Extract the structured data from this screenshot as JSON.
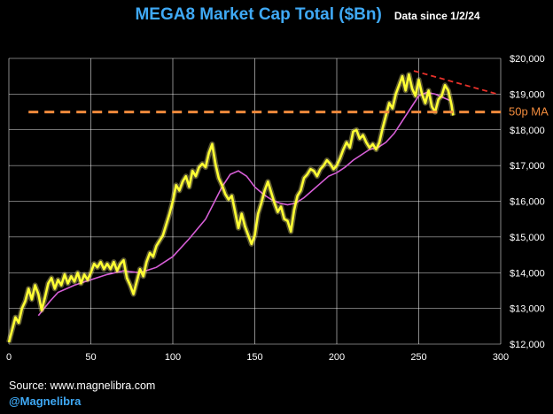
{
  "header": {
    "title": "MEGA8 Market Cap Total ($Bn)",
    "subtitle": "Data since 1/2/24"
  },
  "footer": {
    "source": "Source: www.magnelibra.com",
    "handle": "@Magnelibra"
  },
  "colors": {
    "background": "#000000",
    "title": "#3fa9f5",
    "price_line": "#ffff33",
    "price_glow": "#fff48a",
    "ma_line": "#d65ed6",
    "support_line": "#f08a3c",
    "trend_line": "#e8312a",
    "grid": "#ffffff"
  },
  "chart_data": {
    "type": "line",
    "xlim": [
      0,
      300
    ],
    "ylim": [
      12000,
      20000
    ],
    "x_ticks": [
      0,
      50,
      100,
      150,
      200,
      250,
      300
    ],
    "y_ticks": [
      12000,
      13000,
      14000,
      15000,
      16000,
      17000,
      18000,
      19000,
      20000
    ],
    "y_tick_labels": [
      "$12,000",
      "$13,000",
      "$14,000",
      "$15,000",
      "$16,000",
      "$17,000",
      "$18,000",
      "$19,000",
      "$20,000"
    ],
    "grid": true,
    "series": [
      {
        "name": "",
        "role": "price",
        "x": [
          0,
          2,
          4,
          6,
          8,
          10,
          12,
          14,
          16,
          18,
          20,
          22,
          24,
          26,
          28,
          30,
          32,
          34,
          36,
          38,
          40,
          42,
          44,
          46,
          48,
          50,
          52,
          54,
          56,
          58,
          60,
          62,
          64,
          66,
          68,
          70,
          72,
          74,
          76,
          78,
          80,
          82,
          84,
          86,
          88,
          90,
          92,
          94,
          96,
          98,
          100,
          102,
          104,
          106,
          108,
          110,
          112,
          114,
          116,
          118,
          120,
          122,
          124,
          126,
          128,
          130,
          132,
          134,
          136,
          138,
          140,
          142,
          144,
          146,
          148,
          150,
          152,
          154,
          156,
          158,
          160,
          162,
          164,
          166,
          168,
          170,
          172,
          174,
          176,
          178,
          180,
          182,
          184,
          186,
          188,
          190,
          192,
          194,
          196,
          198,
          200,
          202,
          204,
          206,
          208,
          210,
          212,
          214,
          216,
          218,
          220,
          222,
          224,
          226,
          228,
          230,
          232,
          234,
          236,
          238,
          240,
          242,
          244,
          246,
          248,
          250,
          252,
          254,
          256,
          258,
          260,
          262,
          264,
          266,
          268,
          270,
          271
        ],
        "y": [
          12050,
          12400,
          12750,
          12600,
          13000,
          13200,
          13550,
          13250,
          13650,
          13400,
          12950,
          13300,
          13700,
          13850,
          13550,
          13800,
          13650,
          13950,
          13700,
          13900,
          13750,
          14000,
          13700,
          13950,
          13800,
          14000,
          14250,
          14150,
          14300,
          14100,
          14250,
          14100,
          14300,
          14050,
          14250,
          14350,
          13850,
          13650,
          13400,
          13750,
          14100,
          13900,
          14300,
          14550,
          14450,
          14750,
          14900,
          15050,
          15350,
          15650,
          16000,
          16450,
          16300,
          16550,
          16700,
          16400,
          16850,
          16700,
          16950,
          17050,
          16950,
          17350,
          17600,
          17050,
          16650,
          16450,
          16200,
          16050,
          16150,
          15700,
          15250,
          15650,
          15300,
          15050,
          14800,
          15050,
          15650,
          15950,
          16300,
          16550,
          16250,
          15950,
          15700,
          15850,
          15500,
          15450,
          15150,
          15750,
          16150,
          16300,
          16650,
          16750,
          16900,
          16850,
          16700,
          16900,
          17000,
          17150,
          17050,
          16900,
          17000,
          17200,
          17450,
          17650,
          17500,
          17950,
          18000,
          17750,
          17850,
          17650,
          17500,
          17600,
          17450,
          17650,
          18050,
          18400,
          18750,
          18600,
          19000,
          19250,
          19500,
          19100,
          19550,
          19150,
          18950,
          19400,
          19000,
          18750,
          19100,
          18650,
          18500,
          18850,
          18950,
          19250,
          19100,
          18700,
          18400
        ]
      },
      {
        "name": "50p MA",
        "role": "moving_average",
        "x": [
          18,
          25,
          30,
          40,
          50,
          60,
          70,
          80,
          90,
          100,
          110,
          120,
          125,
          130,
          135,
          140,
          145,
          150,
          155,
          160,
          165,
          170,
          175,
          180,
          185,
          190,
          195,
          200,
          205,
          210,
          215,
          220,
          225,
          230,
          235,
          240,
          245,
          250,
          255,
          260,
          265,
          270
        ],
        "y": [
          12800,
          13200,
          13450,
          13650,
          13800,
          13950,
          14050,
          14000,
          14150,
          14450,
          14950,
          15500,
          15950,
          16400,
          16750,
          16850,
          16700,
          16400,
          16200,
          16050,
          15950,
          15900,
          15950,
          16100,
          16300,
          16500,
          16700,
          16800,
          16950,
          17150,
          17300,
          17450,
          17500,
          17650,
          17900,
          18250,
          18600,
          18950,
          19050,
          19000,
          18900,
          18800
        ]
      }
    ],
    "annotations": [
      {
        "type": "hline",
        "y": 18500,
        "x_start": 12,
        "style": "dashed",
        "label": "50p MA"
      },
      {
        "type": "trendline",
        "x": [
          247,
          298
        ],
        "y": [
          19650,
          19000
        ],
        "style": "dashed"
      }
    ]
  }
}
